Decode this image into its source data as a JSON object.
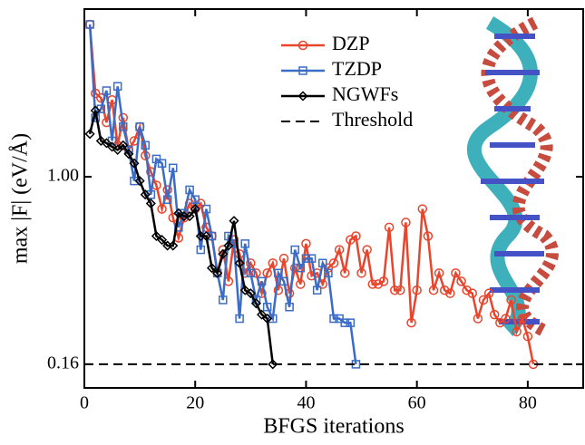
{
  "chart_data": {
    "type": "line",
    "xlabel": "BFGS iterations",
    "ylabel": "max |F| (eV/Å)",
    "xlim": [
      0,
      90
    ],
    "xticks": [
      0,
      20,
      40,
      60,
      80
    ],
    "ylim": [
      0.127,
      5.15
    ],
    "yscale": "log",
    "yticks": [
      0.16,
      {
        "value": 1,
        "label": "1.00"
      }
    ],
    "series": [
      {
        "name": "DZP",
        "color": "#e8452c",
        "marker": "circle",
        "x": [
          1,
          2,
          3,
          4,
          5,
          6,
          7,
          8,
          9,
          10,
          11,
          12,
          13,
          14,
          15,
          16,
          17,
          18,
          19,
          20,
          21,
          22,
          23,
          24,
          25,
          26,
          27,
          28,
          29,
          30,
          31,
          32,
          33,
          34,
          35,
          36,
          37,
          38,
          39,
          40,
          41,
          42,
          43,
          44,
          45,
          46,
          47,
          48,
          49,
          50,
          51,
          52,
          53,
          54,
          55,
          56,
          57,
          58,
          59,
          60,
          61,
          62,
          63,
          64,
          65,
          66,
          67,
          68,
          69,
          70,
          71,
          72,
          73,
          74,
          75,
          76,
          77,
          78,
          79,
          80,
          81
        ],
        "values": [
          4.43,
          2.26,
          2.16,
          1.7,
          2.12,
          1.36,
          1.78,
          1.3,
          1.42,
          1.63,
          1.23,
          1.05,
          0.92,
          0.73,
          0.88,
          0.67,
          0.55,
          0.67,
          0.77,
          0.73,
          0.77,
          0.61,
          0.56,
          0.39,
          0.49,
          0.36,
          0.54,
          0.47,
          0.39,
          0.43,
          0.39,
          0.32,
          0.39,
          0.43,
          0.33,
          0.45,
          0.32,
          0.41,
          0.35,
          0.52,
          0.38,
          0.39,
          0.35,
          0.41,
          0.43,
          0.49,
          0.39,
          0.54,
          0.56,
          0.39,
          0.49,
          0.35,
          0.35,
          0.36,
          0.61,
          0.33,
          0.33,
          0.64,
          0.24,
          0.33,
          0.73,
          0.56,
          0.33,
          0.39,
          0.33,
          0.32,
          0.39,
          0.36,
          0.33,
          0.32,
          0.25,
          0.3,
          0.32,
          0.26,
          0.24,
          0.25,
          0.3,
          0.22,
          0.25,
          0.21,
          0.16
        ]
      },
      {
        "name": "TZDP",
        "color": "#3b6cc6",
        "marker": "square",
        "x": [
          1,
          2,
          3,
          4,
          5,
          6,
          7,
          8,
          9,
          10,
          11,
          12,
          13,
          14,
          15,
          16,
          17,
          18,
          19,
          20,
          21,
          22,
          23,
          24,
          25,
          26,
          27,
          28,
          29,
          30,
          31,
          32,
          33,
          34,
          35,
          36,
          37,
          38,
          39,
          40,
          41,
          42,
          43,
          44,
          45,
          46,
          47,
          48,
          49
        ],
        "values": [
          4.43,
          1.78,
          1.94,
          2.32,
          1.42,
          2.42,
          1.63,
          1.3,
          0.96,
          1.63,
          1.36,
          0.84,
          1.19,
          1.14,
          0.8,
          1.09,
          0.61,
          0.7,
          0.88,
          0.8,
          0.49,
          0.73,
          0.56,
          0.39,
          0.3,
          0.56,
          0.52,
          0.25,
          0.52,
          0.39,
          0.3,
          0.36,
          0.28,
          0.25,
          0.39,
          0.36,
          0.28,
          0.49,
          0.41,
          0.45,
          0.45,
          0.33,
          0.43,
          0.39,
          0.25,
          0.25,
          0.24,
          0.24,
          0.16
        ]
      },
      {
        "name": "NGWFs",
        "color": "#000000",
        "marker": "diamond",
        "x": [
          1,
          2,
          3,
          4,
          5,
          6,
          7,
          8,
          9,
          10,
          11,
          12,
          13,
          14,
          15,
          16,
          17,
          18,
          19,
          20,
          21,
          22,
          23,
          24,
          25,
          26,
          27,
          28,
          29,
          30,
          31,
          32,
          33,
          34
        ],
        "values": [
          1.52,
          1.91,
          1.42,
          1.39,
          1.34,
          1.3,
          1.36,
          1.25,
          1.14,
          0.96,
          0.84,
          0.77,
          0.56,
          0.54,
          0.51,
          0.51,
          0.7,
          0.68,
          0.68,
          0.73,
          0.56,
          0.56,
          0.41,
          0.39,
          0.47,
          0.51,
          0.65,
          0.43,
          0.33,
          0.32,
          0.29,
          0.26,
          0.25,
          0.16
        ]
      }
    ],
    "hlines": [
      {
        "name": "Threshold",
        "value": 0.16,
        "color": "#000000"
      }
    ]
  }
}
